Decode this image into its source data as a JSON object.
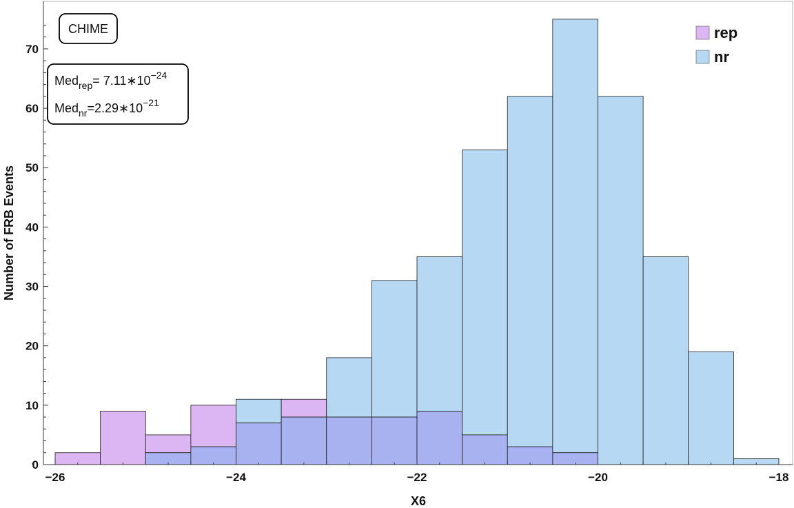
{
  "chart_data": {
    "type": "bar",
    "subtype": "overlaid-histogram",
    "xlabel": "X6",
    "ylabel": "Number of FRB Events",
    "xlim": [
      -26.3,
      -17.7
    ],
    "ylim": [
      0,
      78
    ],
    "xticks": [
      -26,
      -24,
      -22,
      -20,
      -18
    ],
    "yticks": [
      0,
      10,
      20,
      30,
      40,
      50,
      60,
      70
    ],
    "bin_width": 0.5,
    "grid": false,
    "legend_position": "top-right",
    "overlap_color": "#a8b2f0",
    "series": [
      {
        "name": "rep",
        "color": "#dcb6f3",
        "bins": [
          {
            "x0": -26.0,
            "x1": -25.5,
            "count": 2
          },
          {
            "x0": -25.5,
            "x1": -25.0,
            "count": 9
          },
          {
            "x0": -25.0,
            "x1": -24.5,
            "count": 5
          },
          {
            "x0": -24.5,
            "x1": -24.0,
            "count": 10
          },
          {
            "x0": -24.0,
            "x1": -23.5,
            "count": 7
          },
          {
            "x0": -23.5,
            "x1": -23.0,
            "count": 11
          },
          {
            "x0": -23.0,
            "x1": -22.5,
            "count": 8
          },
          {
            "x0": -22.5,
            "x1": -22.0,
            "count": 8
          },
          {
            "x0": -22.0,
            "x1": -21.5,
            "count": 9
          },
          {
            "x0": -21.5,
            "x1": -21.0,
            "count": 5
          },
          {
            "x0": -21.0,
            "x1": -20.5,
            "count": 3
          },
          {
            "x0": -20.5,
            "x1": -20.0,
            "count": 2
          }
        ]
      },
      {
        "name": "nr",
        "color": "#b7d8f3",
        "bins": [
          {
            "x0": -25.0,
            "x1": -24.5,
            "count": 2
          },
          {
            "x0": -24.5,
            "x1": -24.0,
            "count": 3
          },
          {
            "x0": -24.0,
            "x1": -23.5,
            "count": 11
          },
          {
            "x0": -23.5,
            "x1": -23.0,
            "count": 8
          },
          {
            "x0": -23.0,
            "x1": -22.5,
            "count": 18
          },
          {
            "x0": -22.5,
            "x1": -22.0,
            "count": 31
          },
          {
            "x0": -22.0,
            "x1": -21.5,
            "count": 35
          },
          {
            "x0": -21.5,
            "x1": -21.0,
            "count": 53
          },
          {
            "x0": -21.0,
            "x1": -20.5,
            "count": 62
          },
          {
            "x0": -20.5,
            "x1": -20.0,
            "count": 75
          },
          {
            "x0": -20.0,
            "x1": -19.5,
            "count": 62
          },
          {
            "x0": -19.5,
            "x1": -19.0,
            "count": 35
          },
          {
            "x0": -19.0,
            "x1": -18.5,
            "count": 19
          },
          {
            "x0": -18.5,
            "x1": -18.0,
            "count": 1
          }
        ]
      }
    ],
    "annotations": {
      "dataset_label": "CHIME",
      "median_rep": {
        "prefix": "Med",
        "sub": "rep",
        "value": "= 7.11∗10",
        "exponent": "−24"
      },
      "median_nr": {
        "prefix": "Med",
        "sub": "nr",
        "value": "=2.29∗10",
        "exponent": "−21"
      }
    }
  }
}
